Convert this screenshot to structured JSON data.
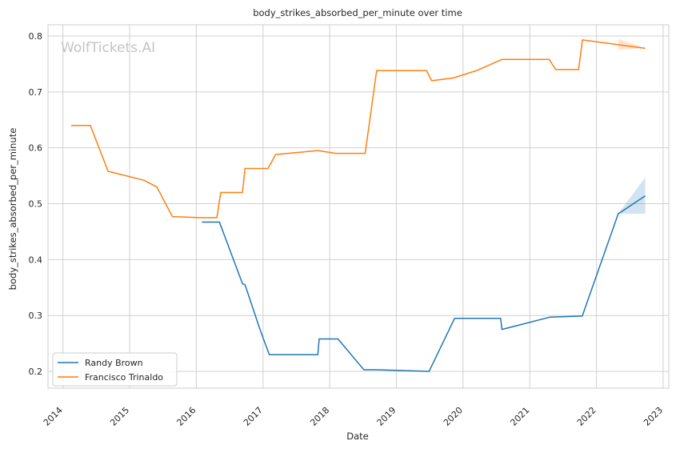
{
  "chart_data": {
    "type": "line",
    "title": "body_strikes_absorbed_per_minute over time",
    "xlabel": "Date",
    "ylabel": "body_strikes_absorbed_per_minute",
    "watermark": "WolfTickets.AI",
    "x_ticks": [
      "2014",
      "2015",
      "2016",
      "2017",
      "2018",
      "2019",
      "2020",
      "2021",
      "2022",
      "2023"
    ],
    "y_ticks": [
      "0.2",
      "0.3",
      "0.4",
      "0.5",
      "0.6",
      "0.7",
      "0.8"
    ],
    "xlim": [
      "2013-10-11",
      "2023-02-01"
    ],
    "ylim": [
      0.17,
      0.82
    ],
    "grid": true,
    "legend_position": "lower-left",
    "series": [
      {
        "name": "Randy Brown",
        "color": "#1f77b4",
        "points": [
          [
            "2016-02-01",
            0.467
          ],
          [
            "2016-05-07",
            0.467
          ],
          [
            "2016-09-10",
            0.357
          ],
          [
            "2016-09-24",
            0.355
          ],
          [
            "2016-12-15",
            0.275
          ],
          [
            "2017-02-04",
            0.23
          ],
          [
            "2017-10-28",
            0.23
          ],
          [
            "2017-11-04",
            0.258
          ],
          [
            "2018-02-15",
            0.258
          ],
          [
            "2018-07-07",
            0.203
          ],
          [
            "2018-09-15",
            0.203
          ],
          [
            "2019-06-29",
            0.2
          ],
          [
            "2019-11-16",
            0.295
          ],
          [
            "2020-07-25",
            0.295
          ],
          [
            "2020-08-01",
            0.275
          ],
          [
            "2021-04-20",
            0.297
          ],
          [
            "2021-10-15",
            0.299
          ],
          [
            "2022-04-30",
            0.482
          ],
          [
            "2022-09-25",
            0.514
          ]
        ],
        "band": [
          [
            "2022-04-30",
            0.482,
            0.482
          ],
          [
            "2022-09-25",
            0.482,
            0.547
          ]
        ]
      },
      {
        "name": "Francisco Trinaldo",
        "color": "#ff7f0e",
        "points": [
          [
            "2014-02-15",
            0.64
          ],
          [
            "2014-05-31",
            0.64
          ],
          [
            "2014-09-05",
            0.558
          ],
          [
            "2015-03-20",
            0.542
          ],
          [
            "2015-05-30",
            0.53
          ],
          [
            "2015-08-23",
            0.477
          ],
          [
            "2016-01-30",
            0.475
          ],
          [
            "2016-04-23",
            0.475
          ],
          [
            "2016-05-14",
            0.52
          ],
          [
            "2016-09-10",
            0.52
          ],
          [
            "2016-09-24",
            0.563
          ],
          [
            "2017-01-28",
            0.563
          ],
          [
            "2017-03-11",
            0.588
          ],
          [
            "2017-10-28",
            0.595
          ],
          [
            "2018-02-03",
            0.59
          ],
          [
            "2018-07-14",
            0.59
          ],
          [
            "2018-09-15",
            0.738
          ],
          [
            "2019-06-15",
            0.738
          ],
          [
            "2019-07-13",
            0.72
          ],
          [
            "2019-11-09",
            0.725
          ],
          [
            "2020-03-14",
            0.738
          ],
          [
            "2020-08-01",
            0.758
          ],
          [
            "2021-04-17",
            0.758
          ],
          [
            "2021-05-22",
            0.74
          ],
          [
            "2021-09-25",
            0.74
          ],
          [
            "2021-10-16",
            0.793
          ],
          [
            "2022-09-25",
            0.778
          ]
        ],
        "band": [
          [
            "2022-04-30",
            0.775,
            0.795
          ],
          [
            "2022-09-25",
            0.778,
            0.778
          ]
        ]
      }
    ]
  }
}
